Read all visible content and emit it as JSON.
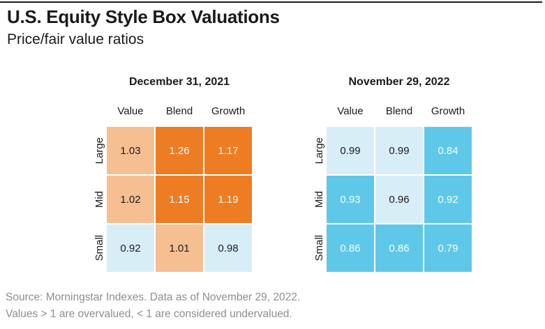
{
  "header": {
    "title": "U.S. Equity Style Box Valuations",
    "subtitle": "Price/fair value ratios"
  },
  "footer": {
    "line1": "Source: Morningstar Indexes. Data as of November 29, 2022.",
    "line2": "Values > 1 are overvalued, < 1 are considered undervalued."
  },
  "colors": {
    "strong_over": "#ED7C23",
    "mild_over": "#F6BF92",
    "mild_under": "#D8EEF7",
    "strong_under": "#5FC8E8",
    "text_dark": "#1A1A1A",
    "text_light": "#FAFDFE",
    "footer_gray": "#8E8E8E",
    "rule_black": "#1A1A1A"
  },
  "chart_data": [
    {
      "type": "heatmap",
      "title": "December 31, 2021",
      "columns": [
        "Value",
        "Blend",
        "Growth"
      ],
      "rows": [
        "Large",
        "Mid",
        "Small"
      ],
      "values": [
        [
          1.03,
          1.26,
          1.17
        ],
        [
          1.02,
          1.15,
          1.19
        ],
        [
          0.92,
          1.01,
          0.98
        ]
      ],
      "tiers": [
        [
          "mild-over",
          "strong-over",
          "strong-over"
        ],
        [
          "mild-over",
          "strong-over",
          "strong-over"
        ],
        [
          "mild-under",
          "mild-over",
          "mild-under"
        ]
      ]
    },
    {
      "type": "heatmap",
      "title": "November 29, 2022",
      "columns": [
        "Value",
        "Blend",
        "Growth"
      ],
      "rows": [
        "Large",
        "Mid",
        "Small"
      ],
      "values": [
        [
          0.99,
          0.99,
          0.84
        ],
        [
          0.93,
          0.96,
          0.92
        ],
        [
          0.86,
          0.86,
          0.79
        ]
      ],
      "tiers": [
        [
          "mild-under",
          "mild-under",
          "strong-under"
        ],
        [
          "strong-under",
          "mild-under",
          "strong-under"
        ],
        [
          "strong-under",
          "strong-under",
          "strong-under"
        ]
      ]
    }
  ]
}
